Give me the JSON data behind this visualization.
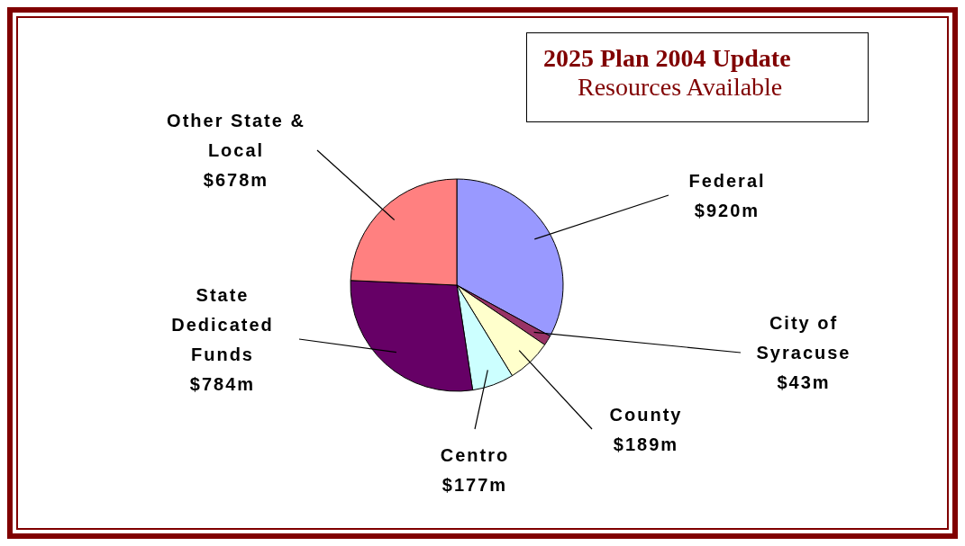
{
  "chart_data": {
    "type": "pie",
    "title": "2025 Plan 2004 Update",
    "subtitle": "Resources Available",
    "categories": [
      "Federal",
      "City of Syracuse",
      "County",
      "Centro",
      "State Dedicated Funds",
      "Other State & Local"
    ],
    "values": [
      920,
      43,
      189,
      177,
      784,
      678
    ],
    "colors": [
      "#9999ff",
      "#993366",
      "#ffffcc",
      "#ccffff",
      "#660066",
      "#ff8080"
    ],
    "value_labels": [
      "$920m",
      "$43m",
      "$189m",
      "$177m",
      "$784m",
      "$678m"
    ],
    "legend": false
  }
}
